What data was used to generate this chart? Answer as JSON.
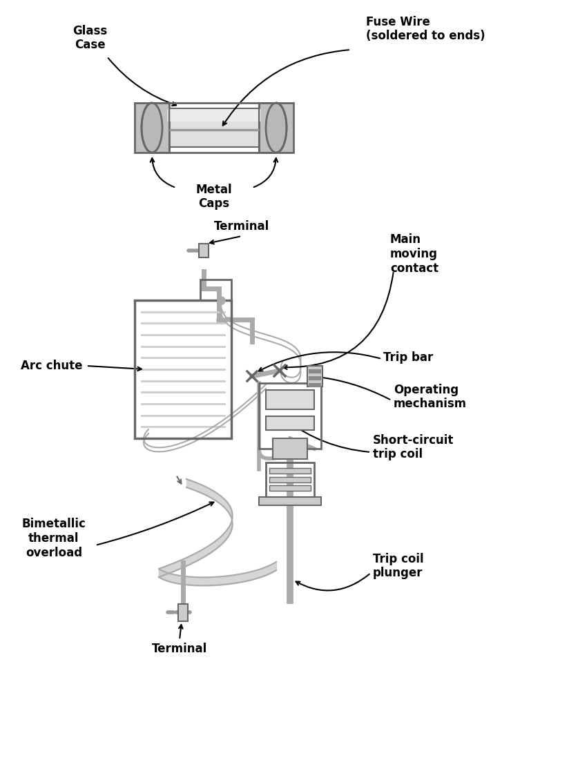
{
  "background_color": "#ffffff",
  "line_color": "#aaaaaa",
  "dark_line_color": "#666666",
  "text_color": "#000000",
  "arrow_color": "#000000",
  "font_size_label": 11,
  "fig_width": 8.24,
  "fig_height": 11.3,
  "labels": {
    "glass_case": "Glass\nCase",
    "fuse_wire": "Fuse Wire\n(soldered to ends)",
    "metal_caps": "Metal\nCaps",
    "terminal_top": "Terminal",
    "main_moving_contact": "Main\nmoving\ncontact",
    "arc_chute": "Arc chute",
    "trip_bar": "Trip bar",
    "operating_mechanism": "Operating\nmechanism",
    "short_circuit_trip_coil": "Short-circuit\ntrip coil",
    "bimetallic_thermal_overload": "Bimetallic\nthermal\noverload",
    "terminal_bottom": "Terminal",
    "trip_coil_plunger": "Trip coil\nplunger"
  }
}
